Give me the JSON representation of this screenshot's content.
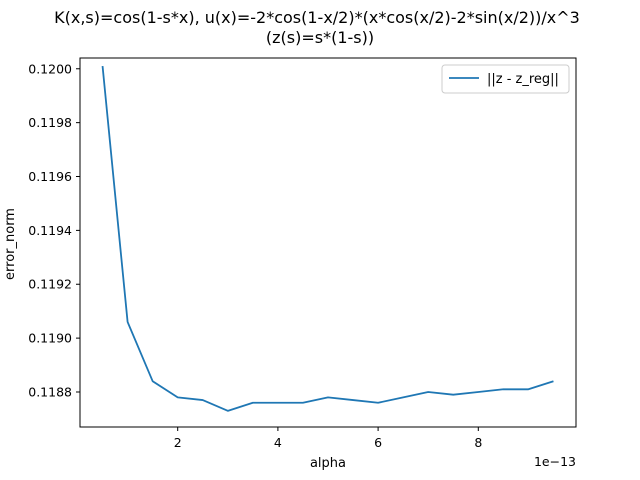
{
  "chart_data": {
    "type": "line",
    "title_line1": "K(x,s)=cos(1-s*x), u(x)=-2*cos(1-x/2)*(x*cos(x/2)-2*sin(x/2))/x^3",
    "title_line2": "(z(s)=s*(1-s))",
    "xlabel": "alpha",
    "ylabel": "error_norm",
    "x_offset_label": "1e−13",
    "x_scale": 1e-13,
    "xlim": [
      0.05,
      9.95
    ],
    "ylim": [
      0.11867,
      0.12004
    ],
    "x_ticks": [
      2,
      4,
      6,
      8
    ],
    "x_tick_labels": [
      "2",
      "4",
      "6",
      "8"
    ],
    "y_ticks": [
      0.1188,
      0.119,
      0.1192,
      0.1194,
      0.1196,
      0.1198,
      0.12
    ],
    "y_tick_labels": [
      "0.1188",
      "0.1190",
      "0.1192",
      "0.1194",
      "0.1196",
      "0.1198",
      "0.1200"
    ],
    "grid": false,
    "legend_position": "top-right",
    "series": [
      {
        "name": "||z - z_reg||",
        "color": "#1f77b4",
        "x": [
          0.5,
          1.0,
          1.5,
          2.0,
          2.5,
          3.0,
          3.5,
          4.0,
          4.5,
          5.0,
          5.5,
          6.0,
          6.5,
          7.0,
          7.5,
          8.0,
          8.5,
          9.0,
          9.5
        ],
        "y": [
          0.12001,
          0.11906,
          0.11884,
          0.11878,
          0.11877,
          0.11873,
          0.11876,
          0.11876,
          0.11876,
          0.11878,
          0.11877,
          0.11876,
          0.11878,
          0.1188,
          0.11879,
          0.1188,
          0.11881,
          0.11881,
          0.11884
        ]
      }
    ]
  }
}
